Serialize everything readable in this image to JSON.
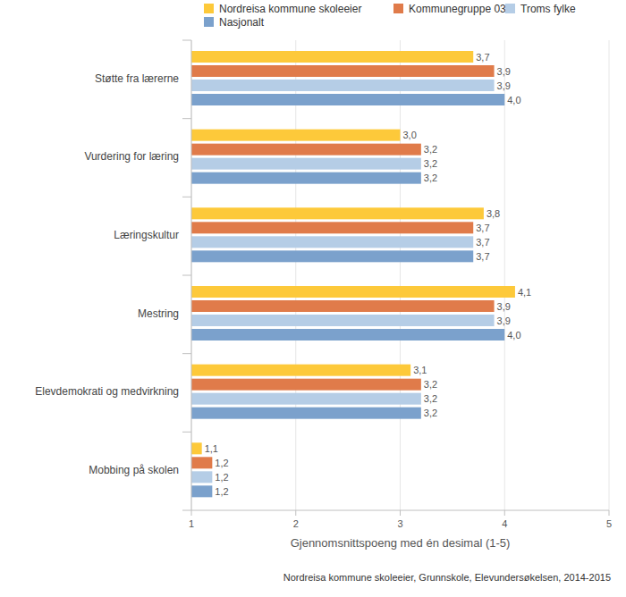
{
  "chart_data": {
    "type": "bar",
    "orientation": "horizontal",
    "categories": [
      "Støtte fra lærerne",
      "Vurdering for læring",
      "Læringskultur",
      "Mestring",
      "Elevdemokrati og medvirkning",
      "Mobbing på skolen"
    ],
    "series": [
      {
        "name": "Nordreisa kommune skoleeier",
        "color": "#fdc93a",
        "values": [
          3.7,
          3.0,
          3.8,
          4.1,
          3.1,
          1.1
        ],
        "value_labels": [
          "3,7",
          "3,0",
          "3,8",
          "4,1",
          "3,1",
          "1,1"
        ]
      },
      {
        "name": "Kommunegruppe 03",
        "color": "#e07b4a",
        "values": [
          3.9,
          3.2,
          3.7,
          3.9,
          3.2,
          1.2
        ],
        "value_labels": [
          "3,9",
          "3,2",
          "3,7",
          "3,9",
          "3,2",
          "1,2"
        ]
      },
      {
        "name": "Troms fylke",
        "color": "#b5cde6",
        "values": [
          3.9,
          3.2,
          3.7,
          3.9,
          3.2,
          1.2
        ],
        "value_labels": [
          "3,9",
          "3,2",
          "3,7",
          "3,9",
          "3,2",
          "1,2"
        ]
      },
      {
        "name": "Nasjonalt",
        "color": "#7ba1cc",
        "values": [
          4.0,
          3.2,
          3.7,
          4.0,
          3.2,
          1.2
        ],
        "value_labels": [
          "4,0",
          "3,2",
          "3,7",
          "4,0",
          "3,2",
          "1,2"
        ]
      }
    ],
    "xlim": [
      1,
      5
    ],
    "xticks": [
      1,
      2,
      3,
      4,
      5
    ],
    "xlabel": "Gjennomsnittspoeng med én desimal (1-5)",
    "caption": "Nordreisa kommune skoleeier, Grunnskole, Elevundersøkelsen, 2014-2015",
    "grid": true,
    "data_labels": true,
    "legend": "top"
  }
}
